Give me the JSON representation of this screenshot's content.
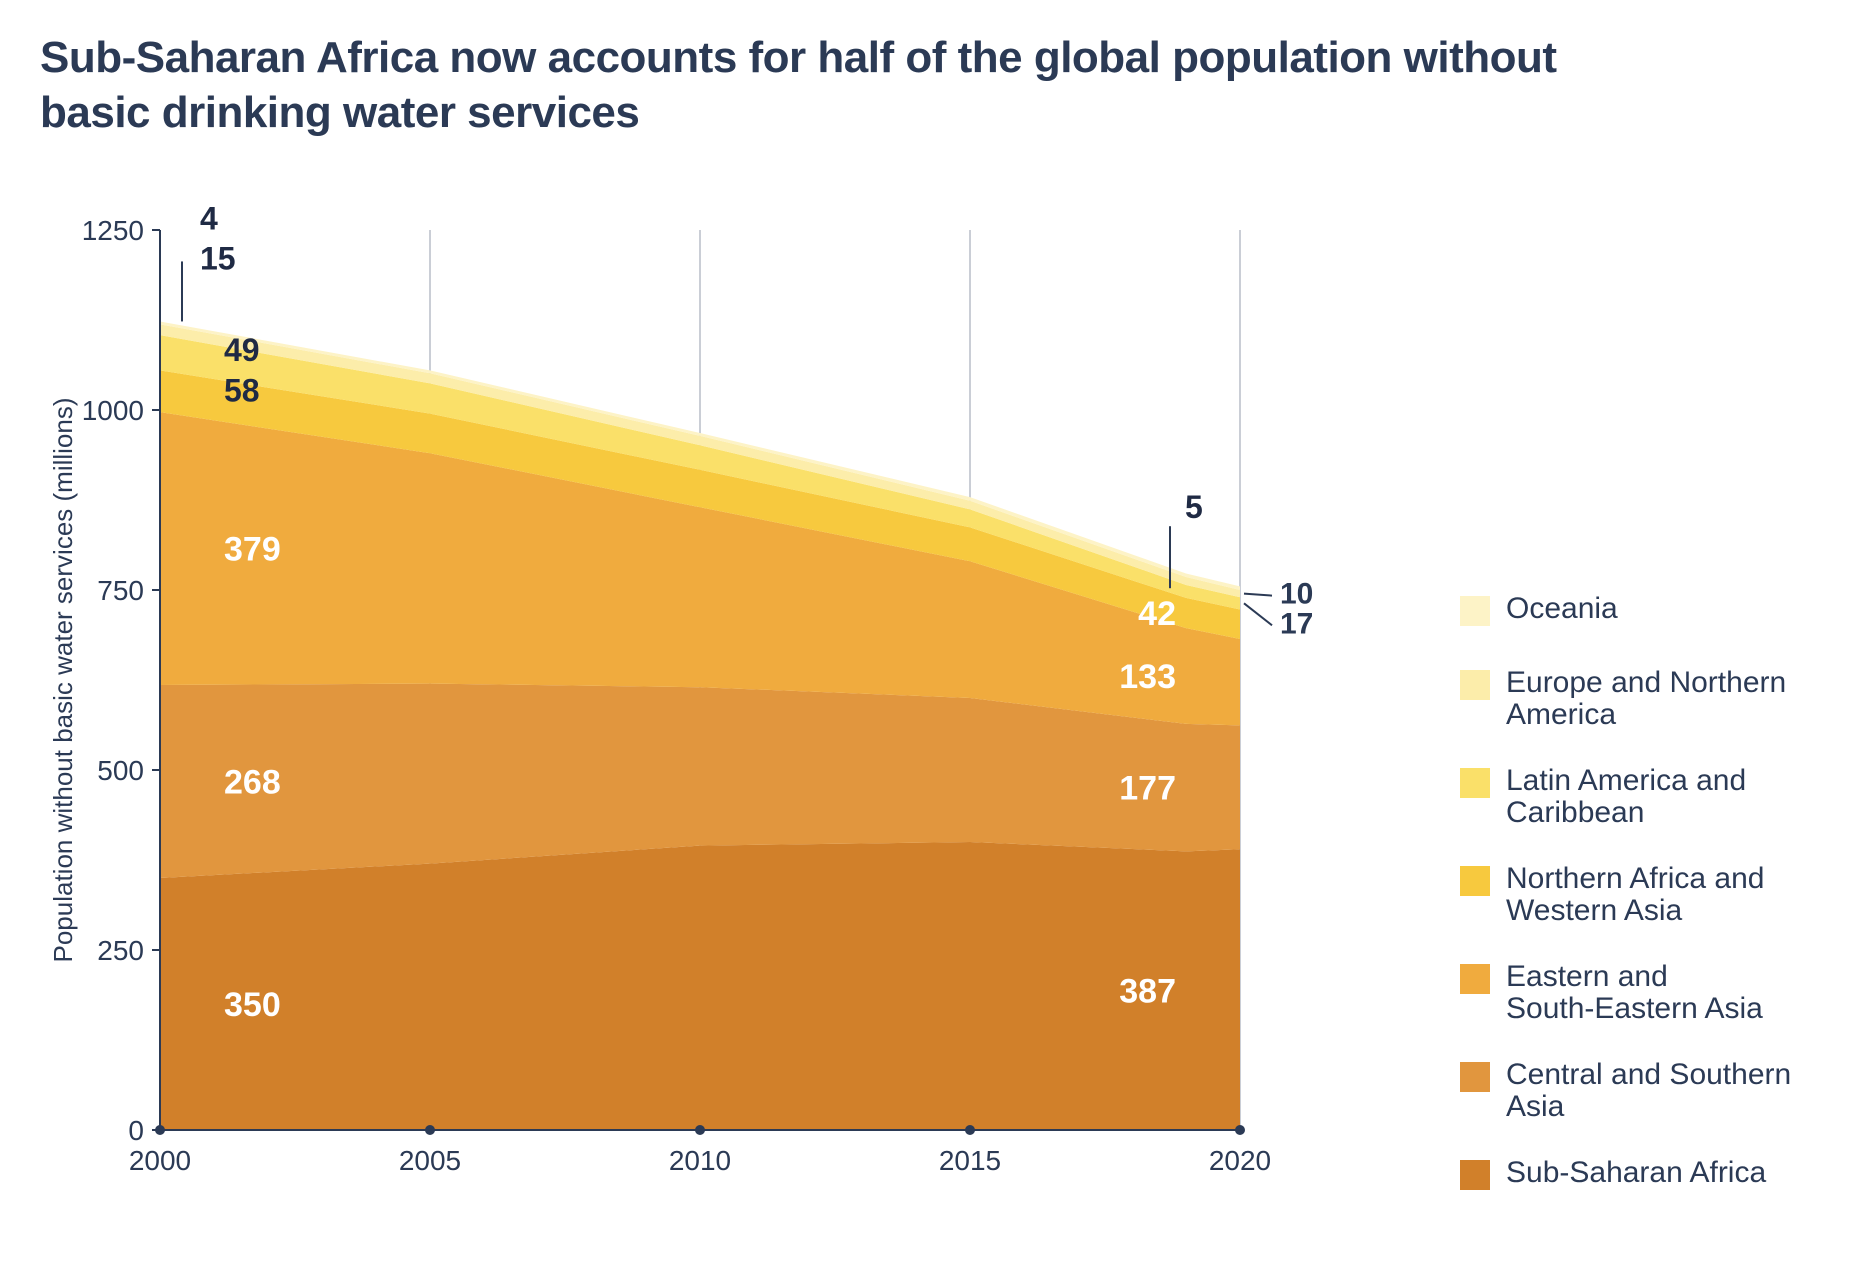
{
  "title": "Sub-Saharan Africa now accounts for half of the global population without basic drinking water services",
  "chart": {
    "type": "stacked-area",
    "background_color": "#ffffff",
    "grid_color": "#b9bec9",
    "axis_color": "#2b3a55",
    "title_color": "#2b3a55",
    "title_fontsize": 44,
    "axis_fontsize": 28,
    "ylabel": "Population without basic water services (millions)",
    "ylabel_fontsize": 26,
    "ylim": [
      0,
      1250
    ],
    "yticks": [
      0,
      250,
      500,
      750,
      1000,
      1250
    ],
    "xticks": [
      2000,
      2005,
      2010,
      2015,
      2020
    ],
    "xlim": [
      2000,
      2020
    ],
    "years": [
      2000,
      2005,
      2010,
      2015,
      2019,
      2020
    ],
    "series": [
      {
        "key": "ssa",
        "label": "Sub-Saharan Africa",
        "color": "#d1802a",
        "values": [
          350,
          370,
          395,
          400,
          387,
          390
        ]
      },
      {
        "key": "csa",
        "label": "Central and Southern Asia",
        "color": "#e1963e",
        "values": [
          268,
          250,
          220,
          200,
          177,
          172
        ]
      },
      {
        "key": "esea",
        "label": "Eastern and South-Eastern Asia",
        "color": "#f0ab3e",
        "values": [
          379,
          320,
          250,
          190,
          133,
          120
        ]
      },
      {
        "key": "nawa",
        "label": "Northern Africa and Western Asia",
        "color": "#f7c93e",
        "values": [
          58,
          55,
          52,
          47,
          42,
          41
        ]
      },
      {
        "key": "lac",
        "label": "Latin America and Caribbean",
        "color": "#fae069",
        "values": [
          49,
          42,
          34,
          25,
          18,
          17
        ]
      },
      {
        "key": "ena",
        "label": "Europe and Northern America",
        "color": "#fcedaa",
        "values": [
          15,
          14,
          13,
          12,
          11,
          10
        ]
      },
      {
        "key": "oce",
        "label": "Oceania",
        "color": "#fdf3c7",
        "values": [
          4,
          4,
          4,
          5,
          5,
          5
        ]
      }
    ],
    "start_labels_dark": {
      "oce": "4",
      "ena": "15",
      "lac": "49",
      "nawa": "58"
    },
    "start_labels_light": {
      "esea": "379",
      "csa": "268",
      "ssa": "350"
    },
    "end_labels_light": {
      "nawa": "42",
      "esea": "133",
      "csa": "177",
      "ssa": "387"
    },
    "end_labels_side": {
      "oce": "5",
      "ena": "10",
      "lac": "17"
    },
    "data_label_fontsize_light": 34,
    "data_label_fontsize_dark": 32,
    "data_label_fontsize_side": 30,
    "legend_fontsize": 30,
    "legend": [
      "oce",
      "ena",
      "lac",
      "nawa",
      "esea",
      "csa",
      "ssa"
    ]
  }
}
